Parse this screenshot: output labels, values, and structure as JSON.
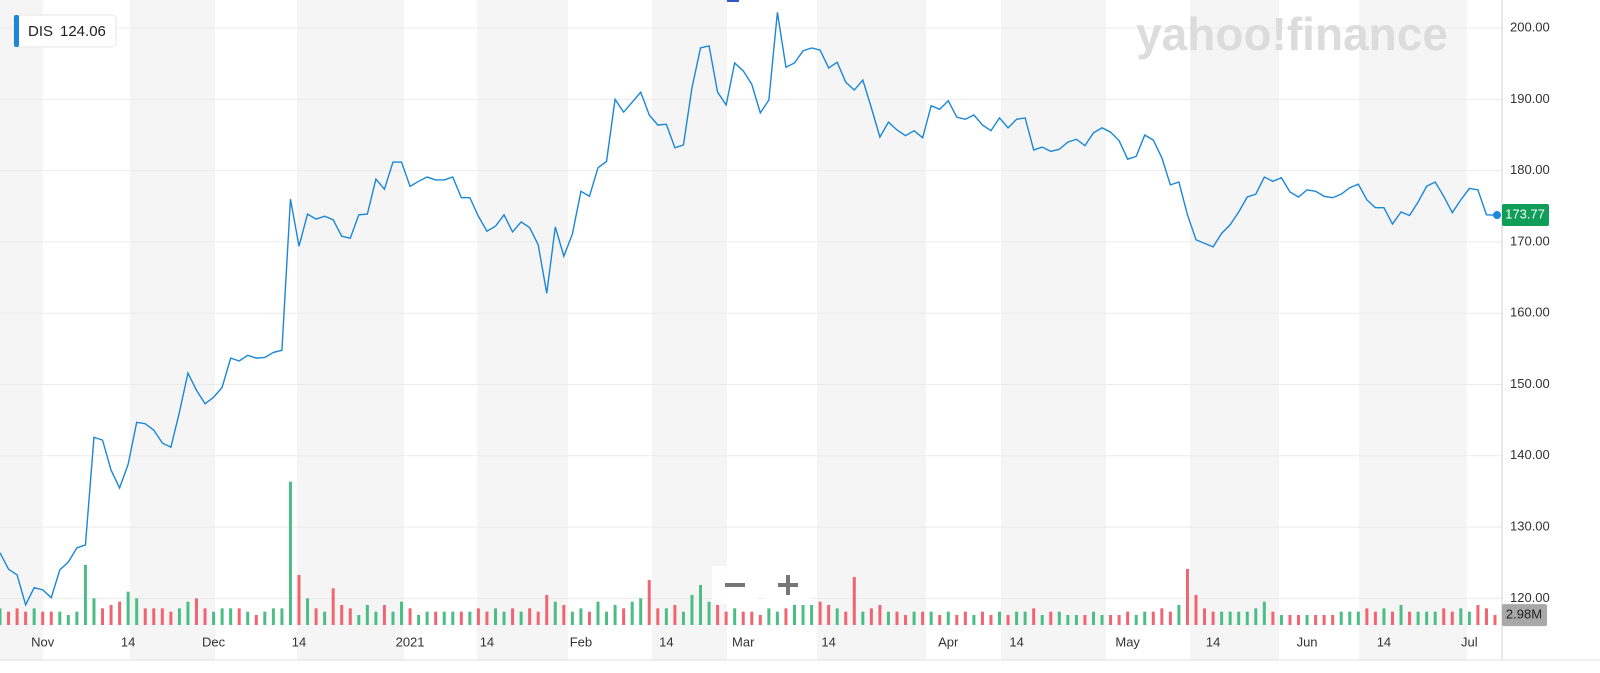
{
  "chart_data": {
    "type": "line",
    "watermark": "yahoo!finance",
    "hover_value": 124.06,
    "last_price_label": "173.77",
    "last_volume_label": "2.98M",
    "categories": [
      null,
      null,
      null,
      null,
      null,
      "Nov",
      null,
      null,
      null,
      null,
      null,
      null,
      null,
      null,
      null,
      "14",
      null,
      null,
      null,
      null,
      null,
      null,
      null,
      null,
      null,
      "Dec",
      null,
      null,
      null,
      null,
      null,
      null,
      null,
      null,
      null,
      "14",
      null,
      null,
      null,
      null,
      null,
      null,
      null,
      null,
      null,
      null,
      null,
      null,
      "2021",
      null,
      null,
      null,
      null,
      null,
      null,
      null,
      null,
      "14",
      null,
      null,
      null,
      null,
      null,
      null,
      null,
      null,
      null,
      null,
      "Feb",
      null,
      null,
      null,
      null,
      null,
      null,
      null,
      null,
      null,
      "14",
      null,
      null,
      null,
      null,
      null,
      null,
      null,
      null,
      "Mar",
      null,
      null,
      null,
      null,
      null,
      null,
      null,
      null,
      null,
      "14",
      null,
      null,
      null,
      null,
      null,
      null,
      null,
      null,
      null,
      null,
      null,
      null,
      null,
      "Apr",
      null,
      null,
      null,
      null,
      null,
      null,
      null,
      "14",
      null,
      null,
      null,
      null,
      null,
      null,
      null,
      null,
      null,
      null,
      null,
      null,
      "May",
      null,
      null,
      null,
      null,
      null,
      null,
      null,
      null,
      null,
      "14",
      null,
      null,
      null,
      null,
      null,
      null,
      null,
      null,
      null,
      null,
      "Jun",
      null,
      null,
      null,
      null,
      null,
      null,
      null,
      null,
      "14",
      null,
      null,
      null,
      null,
      null,
      null,
      null,
      null,
      null,
      "Jul",
      null,
      null,
      null
    ],
    "series": [
      {
        "name": "DIS",
        "color": "#1a87d8",
        "values": [
          126.4,
          124.1,
          123.3,
          119.1,
          121.5,
          121.2,
          120.1,
          124.0,
          125.1,
          127.1,
          127.5,
          142.6,
          142.2,
          138.0,
          135.5,
          138.8,
          144.7,
          144.5,
          143.6,
          141.8,
          141.2,
          146.1,
          151.6,
          149.2,
          147.3,
          148.2,
          149.6,
          153.7,
          153.3,
          154.1,
          153.7,
          153.8,
          154.5,
          154.8,
          176.0,
          169.4,
          173.9,
          173.2,
          173.6,
          173.1,
          170.8,
          170.5,
          173.8,
          173.9,
          178.8,
          177.4,
          181.2,
          181.2,
          177.8,
          178.5,
          179.1,
          178.7,
          178.7,
          179.1,
          176.2,
          176.2,
          173.6,
          171.5,
          172.2,
          173.8,
          171.4,
          172.8,
          172.0,
          169.6,
          162.8,
          172.1,
          168.0,
          171.1,
          177.1,
          176.4,
          180.4,
          181.3,
          190.0,
          188.2,
          189.6,
          191.0,
          187.8,
          186.4,
          186.5,
          183.2,
          183.6,
          191.6,
          197.2,
          197.5,
          191.0,
          189.2,
          195.1,
          194.0,
          192.1,
          188.1,
          189.9,
          202.2,
          194.5,
          195.1,
          196.8,
          197.2,
          196.9,
          194.4,
          195.2,
          192.4,
          191.3,
          192.7,
          188.8,
          184.7,
          186.8,
          185.7,
          184.9,
          185.6,
          184.6,
          189.1,
          188.6,
          189.8,
          187.5,
          187.2,
          187.8,
          186.4,
          185.6,
          187.4,
          186.0,
          187.2,
          187.4,
          182.9,
          183.3,
          182.7,
          183.0,
          184.0,
          184.4,
          183.5,
          185.3,
          186.0,
          185.4,
          184.2,
          181.6,
          182.0,
          185.0,
          184.3,
          181.8,
          178.0,
          178.4,
          173.8,
          170.3,
          169.8,
          169.3,
          171.2,
          172.4,
          174.2,
          176.3,
          176.7,
          179.1,
          178.5,
          179.0,
          177.0,
          176.3,
          177.3,
          177.1,
          176.4,
          176.2,
          176.7,
          177.6,
          178.1,
          175.9,
          174.8,
          174.8,
          172.5,
          174.2,
          173.7,
          175.6,
          177.8,
          178.4,
          176.4,
          174.1,
          175.9,
          177.5,
          177.3,
          173.8,
          173.77
        ]
      }
    ],
    "volume": {
      "axis": "y2",
      "up_color": "#4cbd84",
      "down_color": "#ef6571",
      "values": [
        5,
        4,
        5,
        4,
        5,
        4,
        4,
        4,
        3,
        4,
        18,
        8,
        5,
        6,
        7,
        10,
        8,
        5,
        5,
        5,
        4,
        5,
        7,
        8,
        5,
        4,
        5,
        5,
        5,
        4,
        3,
        4,
        5,
        5,
        43,
        15,
        8,
        5,
        4,
        11,
        6,
        5,
        3,
        6,
        4,
        6,
        4,
        7,
        5,
        3,
        4,
        4,
        4,
        4,
        4,
        4,
        5,
        4,
        5,
        4,
        5,
        4,
        5,
        4,
        9,
        7,
        6,
        4,
        5,
        4,
        7,
        4,
        6,
        5,
        7,
        8,
        13.5,
        5,
        5,
        6,
        4,
        9,
        12,
        7,
        6,
        4,
        5,
        4,
        4,
        3,
        5,
        4,
        5,
        6,
        6,
        6,
        7,
        6,
        5,
        4,
        14.4,
        4,
        5,
        6,
        4,
        4,
        3,
        4,
        4,
        4,
        3,
        4,
        3,
        4,
        3,
        4,
        3,
        4,
        3,
        4,
        4,
        5,
        3,
        4,
        4,
        3,
        3,
        3,
        4,
        3,
        3,
        3,
        4,
        3,
        4,
        4,
        5,
        4,
        6,
        16.8,
        9,
        5,
        4,
        4,
        4,
        4,
        4,
        5,
        7,
        4,
        3,
        3,
        3,
        3,
        3,
        3,
        3,
        4,
        4,
        4,
        5,
        4,
        5,
        4,
        6,
        4,
        4,
        4,
        4,
        5,
        4,
        5,
        4,
        6,
        5,
        2.98
      ]
    },
    "ylim": [
      116.27,
      203.93
    ],
    "y2lim": [
      0,
      45
    ],
    "yticks": [
      {
        "value": 120,
        "label": "120.00"
      },
      {
        "value": 130,
        "label": "130.00"
      },
      {
        "value": 140,
        "label": "140.00"
      },
      {
        "value": 150,
        "label": "150.00"
      },
      {
        "value": 160,
        "label": "160.00"
      },
      {
        "value": 170,
        "label": "170.00"
      },
      {
        "value": 180,
        "label": "180.00"
      },
      {
        "value": 190,
        "label": "190.00"
      },
      {
        "value": 200,
        "label": "200.00"
      }
    ],
    "grid": true
  }
}
